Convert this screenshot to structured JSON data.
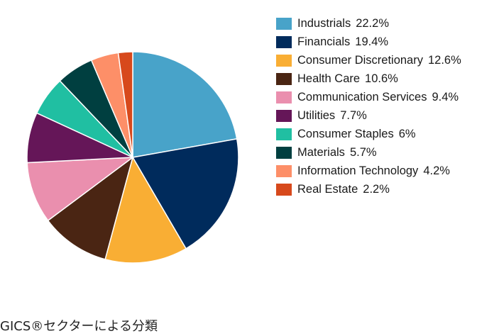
{
  "caption": "GICS®セクターによる分類",
  "chart_data": {
    "type": "pie",
    "title": "",
    "categories": [
      "Industrials",
      "Financials",
      "Consumer Discretionary",
      "Health Care",
      "Communication Services",
      "Utilities",
      "Consumer Staples",
      "Materials",
      "Information Technology",
      "Real Estate"
    ],
    "values": [
      22.2,
      19.4,
      12.6,
      10.6,
      9.4,
      7.7,
      6,
      5.7,
      4.2,
      2.2
    ],
    "value_labels": [
      "22.2%",
      "19.4%",
      "12.6%",
      "10.6%",
      "9.4%",
      "7.7%",
      "6%",
      "5.7%",
      "4.2%",
      "2.2%"
    ],
    "colors": [
      "#48A3C9",
      "#002B5C",
      "#F9AE34",
      "#4A2513",
      "#EA8FAE",
      "#651658",
      "#20BFA2",
      "#003F40",
      "#FD8F68",
      "#D7491C"
    ],
    "legend_position": "right",
    "start_angle": "top",
    "direction": "clockwise"
  }
}
